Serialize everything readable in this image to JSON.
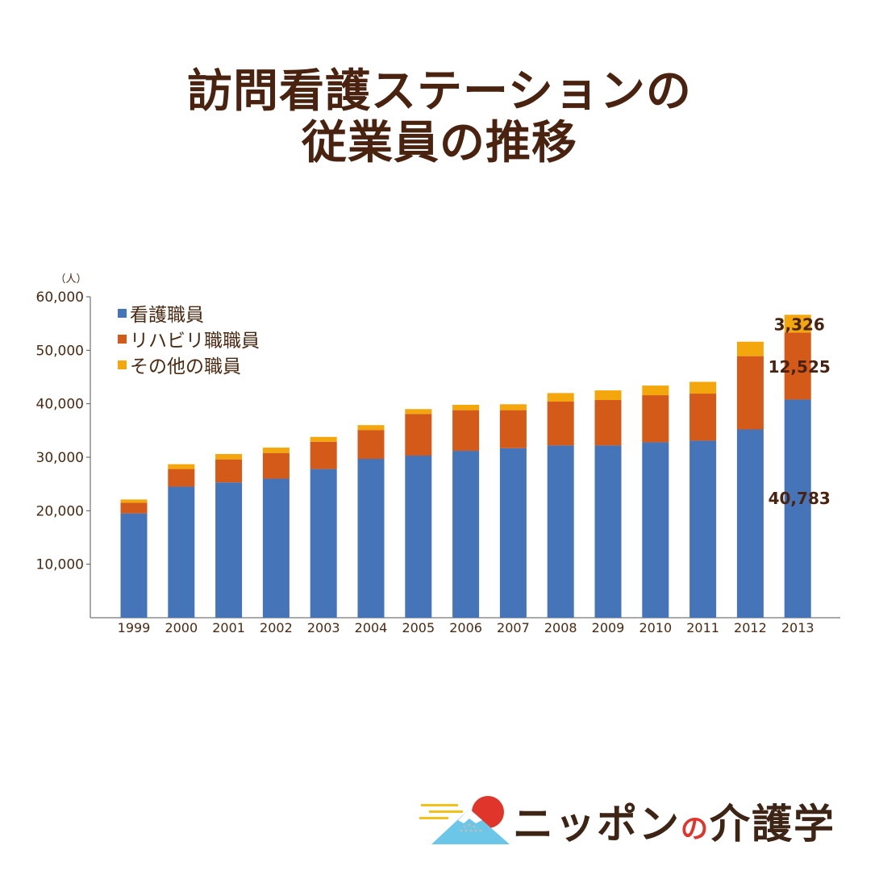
{
  "title_line1": "訪問看護ステーションの",
  "title_line2": "従業員の推移",
  "chart_data": {
    "type": "bar",
    "stacked": true,
    "unit_label": "（人）",
    "categories": [
      "1999",
      "2000",
      "2001",
      "2002",
      "2003",
      "2004",
      "2005",
      "2006",
      "2007",
      "2008",
      "2009",
      "2010",
      "2011",
      "2012",
      "2013"
    ],
    "series": [
      {
        "name": "看護職員",
        "color": "#4674b8",
        "values": [
          19500,
          24500,
          25300,
          26000,
          27800,
          29700,
          30300,
          31200,
          31700,
          32200,
          32200,
          32800,
          33100,
          35200,
          40783
        ]
      },
      {
        "name": "リハビリ職職員",
        "color": "#d45a19",
        "values": [
          2000,
          3300,
          4300,
          4800,
          5100,
          5400,
          7800,
          7600,
          7100,
          8200,
          8500,
          8800,
          8800,
          13700,
          12525
        ]
      },
      {
        "name": "その他の職員",
        "color": "#f3a70d",
        "values": [
          600,
          900,
          1000,
          1000,
          900,
          900,
          900,
          1000,
          1100,
          1600,
          1800,
          1800,
          2200,
          2700,
          3326
        ]
      }
    ],
    "ylim": [
      0,
      60000
    ],
    "yticks": [
      10000,
      20000,
      30000,
      40000,
      50000,
      60000
    ],
    "ytick_labels": [
      "10,000",
      "20,000",
      "30,000",
      "40,000",
      "50,000",
      "60,000"
    ],
    "data_labels": [
      "3,326",
      "12,525",
      "40,783"
    ],
    "legend_position": "top-left"
  },
  "logo": {
    "text_main": "ニッポン",
    "text_no": "の",
    "text_end": "介護学"
  }
}
